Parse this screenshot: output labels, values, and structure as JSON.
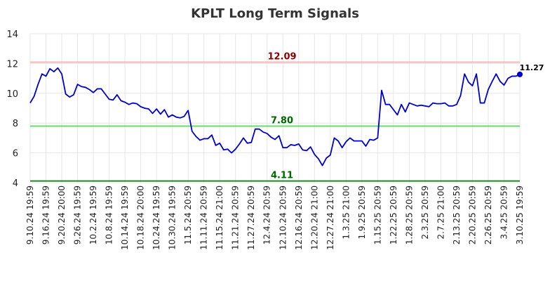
{
  "chart_data": {
    "type": "line",
    "title": "KPLT Long Term Signals",
    "xlabel": "",
    "ylabel": "",
    "ylim": [
      4,
      14
    ],
    "yticks": [
      "4",
      "6",
      "8",
      "10",
      "12",
      "14"
    ],
    "grid": true,
    "x_tick_labels": [
      "9.10.24 19:59",
      "9.16.24 19:59",
      "9.20.24 20:00",
      "9.26.24 19:59",
      "10.2.24 19:59",
      "10.8.24 19:59",
      "10.14.24 19:59",
      "10.18.24 20:00",
      "10.24.24 19:59",
      "10.30.24 19:59",
      "11.5.24 20:59",
      "11.11.24 20:59",
      "11.15.24 21:00",
      "11.21.24 20:59",
      "11.27.24 20:59",
      "12.4.24 20:59",
      "12.10.24 20:59",
      "12.16.24 20:59",
      "12.20.24 21:00",
      "12.27.24 21:00",
      "1.3.25 21:00",
      "1.9.25 20:59",
      "1.15.25 20:59",
      "1.22.25 20:59",
      "1.28.25 20:59",
      "2.3.25 20:59",
      "2.7.25 21:00",
      "2.13.25 20:59",
      "2.20.25 20:59",
      "2.26.25 20:59",
      "3.4.25 20:59",
      "3.10.25 19:59"
    ],
    "series": [
      {
        "color": "#0000cc",
        "values": [
          9.35,
          9.8,
          10.6,
          11.3,
          11.15,
          11.65,
          11.45,
          11.7,
          11.3,
          9.95,
          9.75,
          9.9,
          10.6,
          10.45,
          10.4,
          10.25,
          10.05,
          10.3,
          10.3,
          9.95,
          9.6,
          9.55,
          9.9,
          9.5,
          9.4,
          9.25,
          9.35,
          9.3,
          9.1,
          9.0,
          8.95,
          8.65,
          8.95,
          8.6,
          8.9,
          8.4,
          8.55,
          8.4,
          8.35,
          8.45,
          8.85,
          7.45,
          7.1,
          6.85,
          6.95,
          6.95,
          7.2,
          6.5,
          6.65,
          6.2,
          6.25,
          6.0,
          6.25,
          6.6,
          7.0,
          6.65,
          6.7,
          7.6,
          7.6,
          7.4,
          7.3,
          7.05,
          6.9,
          7.15,
          6.35,
          6.35,
          6.55,
          6.5,
          6.6,
          6.2,
          6.15,
          6.4,
          5.9,
          5.6,
          5.15,
          5.65,
          5.85,
          7.0,
          6.8,
          6.35,
          6.75,
          7.0,
          6.8,
          6.8,
          6.8,
          6.45,
          6.9,
          6.85,
          7.0,
          10.2,
          9.25,
          9.25,
          8.9,
          8.55,
          9.25,
          8.75,
          9.35,
          9.25,
          9.15,
          9.2,
          9.15,
          9.1,
          9.35,
          9.3,
          9.3,
          9.35,
          9.15,
          9.15,
          9.25,
          9.85,
          11.3,
          10.75,
          10.5,
          11.3,
          9.35,
          9.35,
          10.25,
          10.8,
          11.3,
          10.8,
          10.55,
          11.0,
          11.15,
          11.15,
          11.27
        ]
      }
    ],
    "horizontal_lines": [
      {
        "value": 12.09,
        "label": "12.09",
        "line_color": "#f4b6b6",
        "label_color": "#8b0000"
      },
      {
        "value": 7.8,
        "label": "7.80",
        "line_color": "#66dd66",
        "label_color": "#006600"
      },
      {
        "value": 4.11,
        "label": "4.11",
        "line_color": "#228822",
        "label_color": "#006600"
      }
    ],
    "last_value_label": "11.27"
  }
}
